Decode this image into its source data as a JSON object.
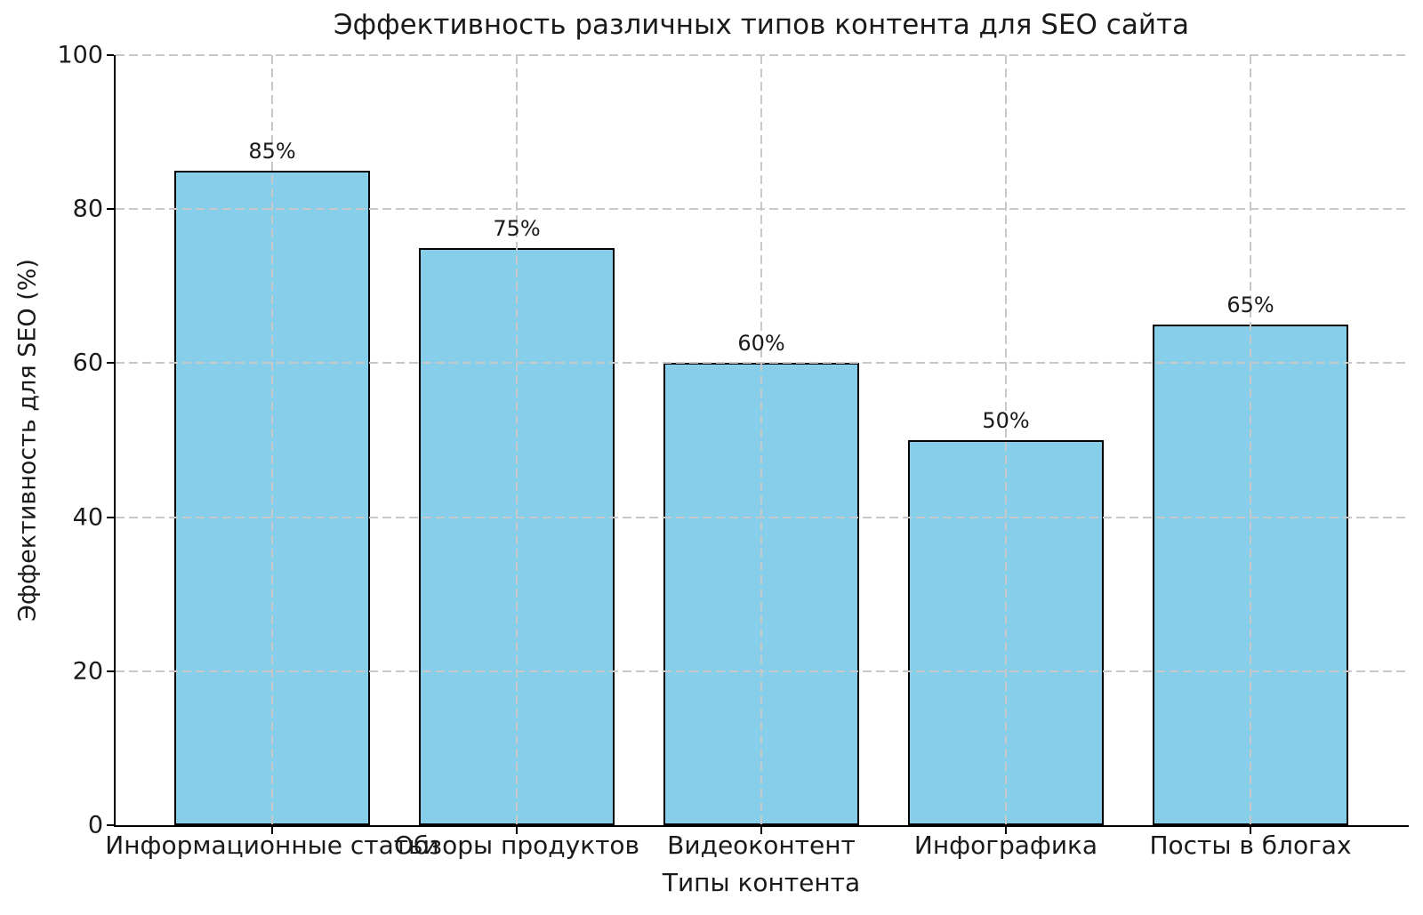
{
  "chart_data": {
    "type": "bar",
    "title": "Эффективность различных типов контента для SEO сайта",
    "xlabel": "Типы контента",
    "ylabel": "Эффективность для SEO (%)",
    "categories": [
      "Информационные статьи",
      "Обзоры продуктов",
      "Видеоконтент",
      "Инфографика",
      "Посты в блогах"
    ],
    "values": [
      85,
      75,
      60,
      50,
      65
    ],
    "value_labels": [
      "85%",
      "75%",
      "60%",
      "50%",
      "65%"
    ],
    "ylim": [
      0,
      100
    ],
    "yticks": [
      0,
      20,
      40,
      60,
      80,
      100
    ],
    "grid": "dashed, drawn above bars, horizontal and vertical",
    "legend": "none",
    "colors": {
      "bar_fill": "#87CEEB",
      "bar_edge": "#000000",
      "grid": "#c8c8c8",
      "text": "#1a1a1a",
      "background": "#ffffff"
    }
  }
}
